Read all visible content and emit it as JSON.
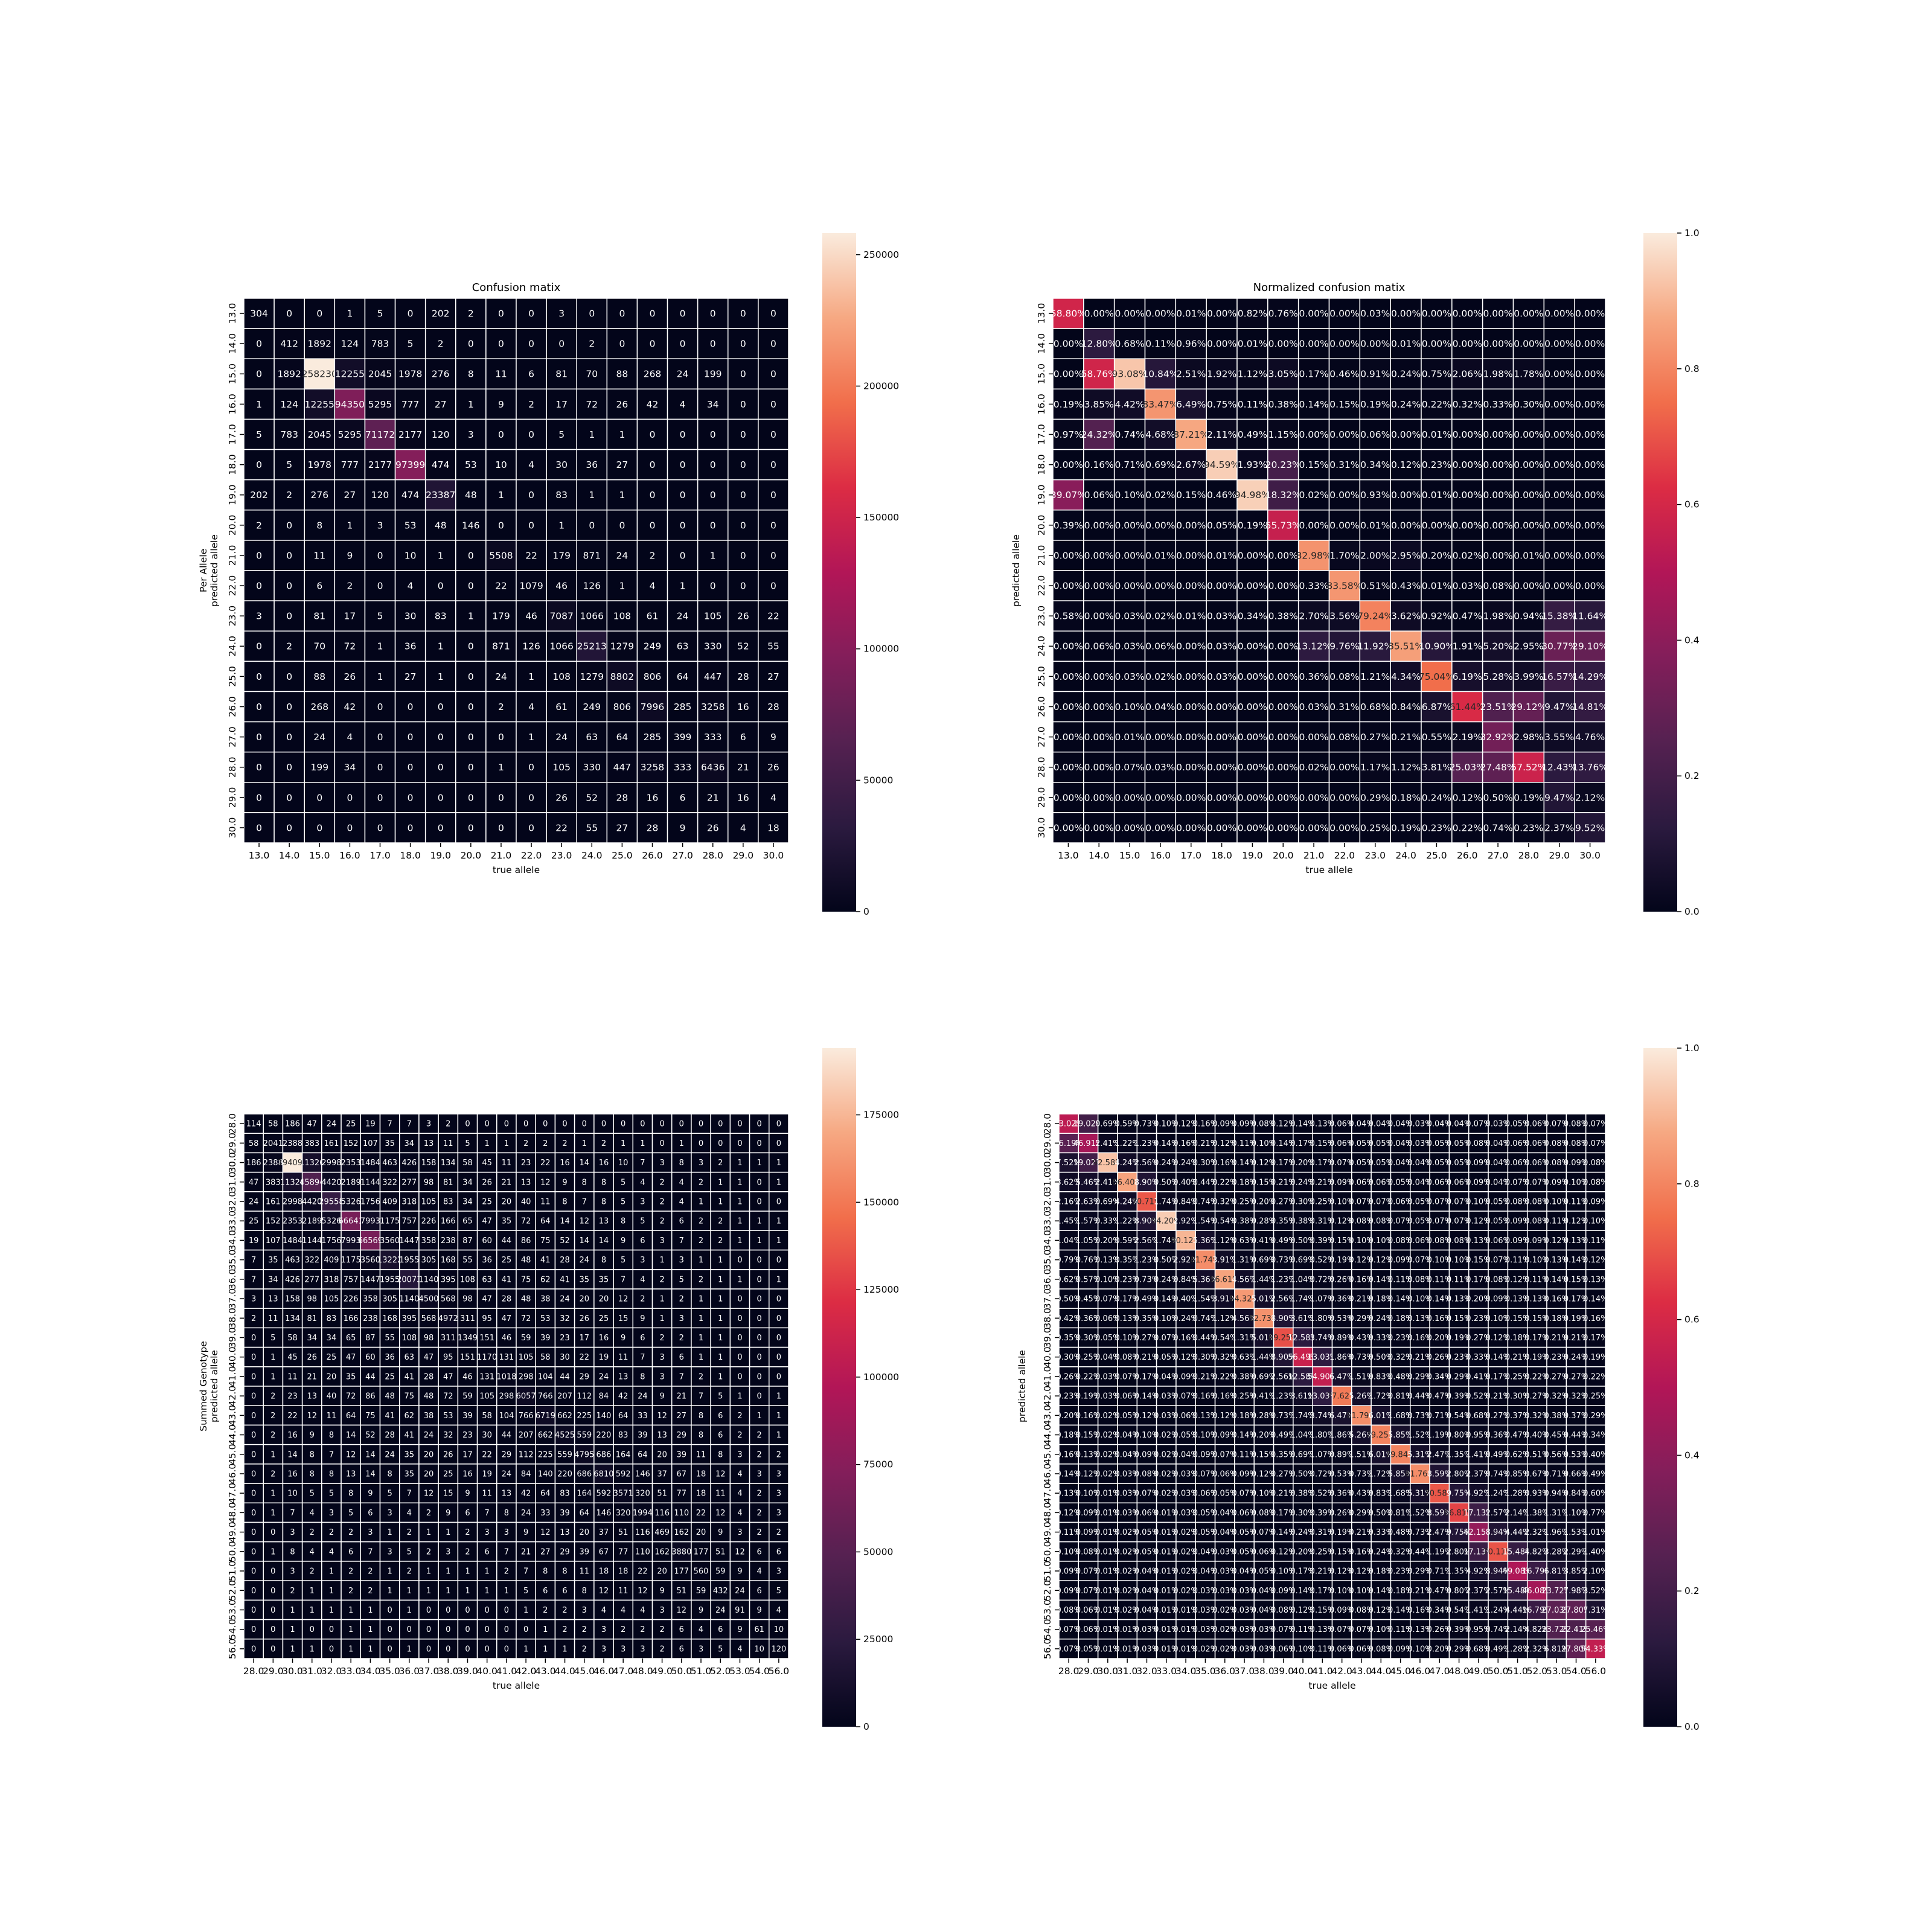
{
  "chart_data": [
    {
      "type": "heatmap",
      "title": "Confusion matix",
      "xlabel": "true allele",
      "ylabel_lines": [
        "Per Allele",
        "predicted allele"
      ],
      "categories": [
        "13.0",
        "14.0",
        "15.0",
        "16.0",
        "17.0",
        "18.0",
        "19.0",
        "20.0",
        "21.0",
        "22.0",
        "23.0",
        "24.0",
        "25.0",
        "26.0",
        "27.0",
        "28.0",
        "29.0",
        "30.0"
      ],
      "colorbar": {
        "min": 0,
        "max": 258230,
        "ticks": [
          0,
          50000,
          100000,
          150000,
          200000,
          250000
        ]
      },
      "cell_text_format": "int",
      "values": [
        [
          304,
          0,
          0,
          1,
          5,
          0,
          202,
          2,
          0,
          0,
          3,
          0,
          0,
          0,
          0,
          0,
          0,
          0
        ],
        [
          0,
          412,
          1892,
          124,
          783,
          5,
          2,
          0,
          0,
          0,
          0,
          2,
          0,
          0,
          0,
          0,
          0,
          0
        ],
        [
          0,
          1892,
          258230,
          12255,
          2045,
          1978,
          276,
          8,
          11,
          6,
          81,
          70,
          88,
          268,
          24,
          199,
          0,
          0
        ],
        [
          1,
          124,
          12255,
          94350,
          5295,
          777,
          27,
          1,
          9,
          2,
          17,
          72,
          26,
          42,
          4,
          34,
          0,
          0
        ],
        [
          5,
          783,
          2045,
          5295,
          71172,
          2177,
          120,
          3,
          0,
          0,
          5,
          1,
          1,
          0,
          0,
          0,
          0,
          0
        ],
        [
          0,
          5,
          1978,
          777,
          2177,
          97399,
          474,
          53,
          10,
          4,
          30,
          36,
          27,
          0,
          0,
          0,
          0,
          0
        ],
        [
          202,
          2,
          276,
          27,
          120,
          474,
          23387,
          48,
          1,
          0,
          83,
          1,
          1,
          0,
          0,
          0,
          0,
          0
        ],
        [
          2,
          0,
          8,
          1,
          3,
          53,
          48,
          146,
          0,
          0,
          1,
          0,
          0,
          0,
          0,
          0,
          0,
          0
        ],
        [
          0,
          0,
          11,
          9,
          0,
          10,
          1,
          0,
          5508,
          22,
          179,
          871,
          24,
          2,
          0,
          1,
          0,
          0
        ],
        [
          0,
          0,
          6,
          2,
          0,
          4,
          0,
          0,
          22,
          1079,
          46,
          126,
          1,
          4,
          1,
          0,
          0,
          0
        ],
        [
          3,
          0,
          81,
          17,
          5,
          30,
          83,
          1,
          179,
          46,
          7087,
          1066,
          108,
          61,
          24,
          105,
          26,
          22
        ],
        [
          0,
          2,
          70,
          72,
          1,
          36,
          1,
          0,
          871,
          126,
          1066,
          25213,
          1279,
          249,
          63,
          330,
          52,
          55
        ],
        [
          0,
          0,
          88,
          26,
          1,
          27,
          1,
          0,
          24,
          1,
          108,
          1279,
          8802,
          806,
          64,
          447,
          28,
          27
        ],
        [
          0,
          0,
          268,
          42,
          0,
          0,
          0,
          0,
          2,
          4,
          61,
          249,
          806,
          7996,
          285,
          3258,
          16,
          28
        ],
        [
          0,
          0,
          24,
          4,
          0,
          0,
          0,
          0,
          0,
          1,
          24,
          63,
          64,
          285,
          399,
          333,
          6,
          9
        ],
        [
          0,
          0,
          199,
          34,
          0,
          0,
          0,
          0,
          1,
          0,
          105,
          330,
          447,
          3258,
          333,
          6436,
          21,
          26
        ],
        [
          0,
          0,
          0,
          0,
          0,
          0,
          0,
          0,
          0,
          0,
          26,
          52,
          28,
          16,
          6,
          21,
          16,
          4
        ],
        [
          0,
          0,
          0,
          0,
          0,
          0,
          0,
          0,
          0,
          0,
          22,
          55,
          27,
          28,
          9,
          26,
          4,
          18
        ]
      ]
    },
    {
      "type": "heatmap",
      "title": "Normalized confusion matix",
      "xlabel": "true allele",
      "ylabel_lines": [
        "predicted allele"
      ],
      "categories": [
        "13.0",
        "14.0",
        "15.0",
        "16.0",
        "17.0",
        "18.0",
        "19.0",
        "20.0",
        "21.0",
        "22.0",
        "23.0",
        "24.0",
        "25.0",
        "26.0",
        "27.0",
        "28.0",
        "29.0",
        "30.0"
      ],
      "colorbar": {
        "min": 0,
        "max": 1,
        "ticks": [
          0.0,
          0.2,
          0.4,
          0.6,
          0.8,
          1.0
        ]
      },
      "cell_text_format": "percent",
      "derived_from": 0
    },
    {
      "type": "heatmap",
      "title": "",
      "xlabel": "true allele",
      "ylabel_lines": [
        "Summed Genotype",
        "predicted allele"
      ],
      "categories": [
        "28.0",
        "29.0",
        "30.0",
        "31.0",
        "32.0",
        "33.0",
        "34.0",
        "35.0",
        "36.0",
        "37.0",
        "38.0",
        "39.0",
        "40.0",
        "41.0",
        "42.0",
        "43.0",
        "44.0",
        "45.0",
        "46.0",
        "47.0",
        "48.0",
        "49.0",
        "50.0",
        "51.0",
        "52.0",
        "53.0",
        "54.0",
        "56.0"
      ],
      "colorbar": {
        "min": 0,
        "max": 194090,
        "ticks": [
          0,
          25000,
          50000,
          75000,
          100000,
          125000,
          150000,
          175000
        ]
      },
      "cell_text_format": "int",
      "diagonal": [
        114,
        2041,
        194090,
        45894,
        29558,
        66641,
        66569,
        13222,
        20073,
        4500,
        4972,
        1349,
        1170,
        1018,
        6057,
        6719,
        4525,
        4795,
        6810,
        3571,
        1994,
        469,
        3880,
        560,
        432,
        91,
        61,
        120
      ]
    },
    {
      "type": "heatmap",
      "title": "",
      "xlabel": "true allele",
      "ylabel_lines": [
        "predicted allele"
      ],
      "categories": [
        "28.0",
        "29.0",
        "30.0",
        "31.0",
        "32.0",
        "33.0",
        "34.0",
        "35.0",
        "36.0",
        "37.0",
        "38.0",
        "39.0",
        "40.0",
        "41.0",
        "42.0",
        "43.0",
        "44.0",
        "45.0",
        "46.0",
        "47.0",
        "48.0",
        "49.0",
        "50.0",
        "51.0",
        "52.0",
        "53.0",
        "54.0",
        "56.0"
      ],
      "colorbar": {
        "min": 0,
        "max": 1,
        "ticks": [
          0.0,
          0.2,
          0.4,
          0.6,
          0.8,
          1.0
        ]
      },
      "cell_text_format": "percent",
      "diagonal": [
        0.5302,
        0.4691,
        0.9258,
        0.864,
        0.7071,
        0.942,
        0.9012,
        0.8174,
        0.8661,
        0.8432,
        0.8273,
        0.6925,
        0.5649,
        0.549,
        0.7762,
        0.8179,
        0.7925,
        0.7984,
        0.8176,
        0.7058,
        0.6681,
        0.4215,
        0.7011,
        0.4908,
        0.4608,
        0.2703,
        0.2241,
        0.5433
      ]
    }
  ]
}
